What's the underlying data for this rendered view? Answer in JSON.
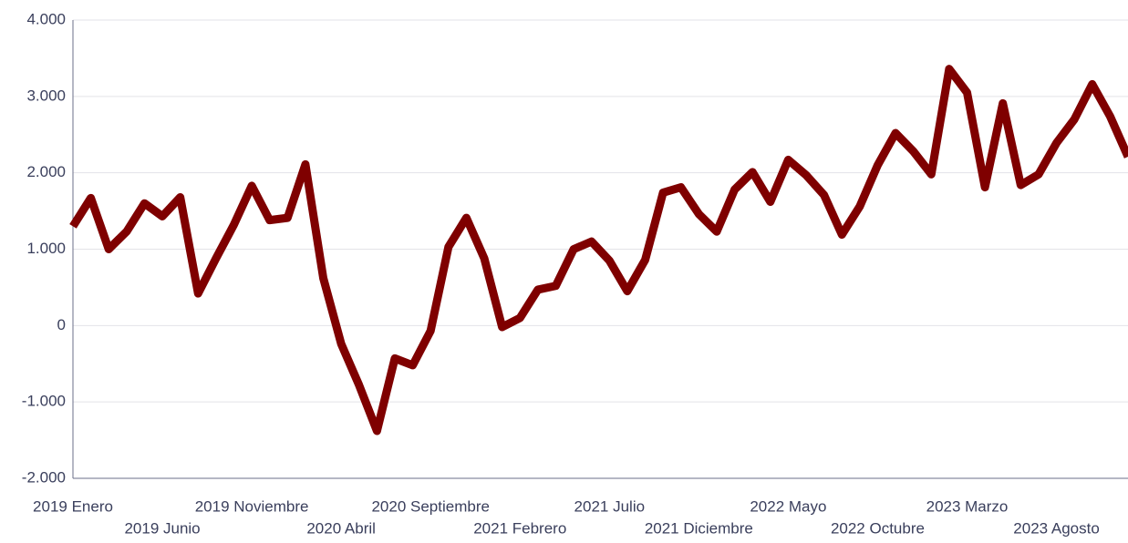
{
  "chart_data": {
    "type": "line",
    "categories": [
      "2019 Enero",
      null,
      null,
      null,
      null,
      "2019 Junio",
      null,
      null,
      null,
      null,
      "2019 Noviembre",
      null,
      null,
      null,
      null,
      "2020 Abril",
      null,
      null,
      null,
      null,
      "2020 Septiembre",
      null,
      null,
      null,
      null,
      "2021 Febrero",
      null,
      null,
      null,
      null,
      "2021 Julio",
      null,
      null,
      null,
      null,
      "2021 Diciembre",
      null,
      null,
      null,
      null,
      "2022 Mayo",
      null,
      null,
      null,
      null,
      "2022 Octubre",
      null,
      null,
      null,
      null,
      "2023 Marzo",
      null,
      null,
      null,
      null,
      "2023 Agosto",
      null,
      null,
      null,
      null
    ],
    "series": [
      {
        "color": "#7f0000",
        "values": [
          1300,
          1670,
          1000,
          1230,
          1600,
          1430,
          1680,
          420,
          880,
          1320,
          1830,
          1380,
          1410,
          2110,
          620,
          -240,
          -780,
          -1380,
          -430,
          -520,
          -70,
          1030,
          1410,
          880,
          -20,
          100,
          470,
          520,
          1000,
          1100,
          850,
          450,
          860,
          1740,
          1810,
          1460,
          1230,
          1780,
          2010,
          1620,
          2170,
          1970,
          1710,
          1190,
          1560,
          2100,
          2520,
          2280,
          1980,
          3360,
          3050,
          1810,
          2910,
          1840,
          1980,
          2390,
          2700,
          3160,
          2740,
          2210
        ]
      }
    ],
    "ylim": [
      -2000,
      4000
    ],
    "yticks": [
      {
        "value": -2000,
        "label": "-2.000"
      },
      {
        "value": -1000,
        "label": "-1.000"
      },
      0,
      {
        "value": 1000,
        "label": "1.000"
      },
      {
        "value": 2000,
        "label": "2.000"
      },
      {
        "value": 3000,
        "label": "3.000"
      },
      {
        "value": 4000,
        "label": "4.000"
      }
    ],
    "grid": true
  }
}
